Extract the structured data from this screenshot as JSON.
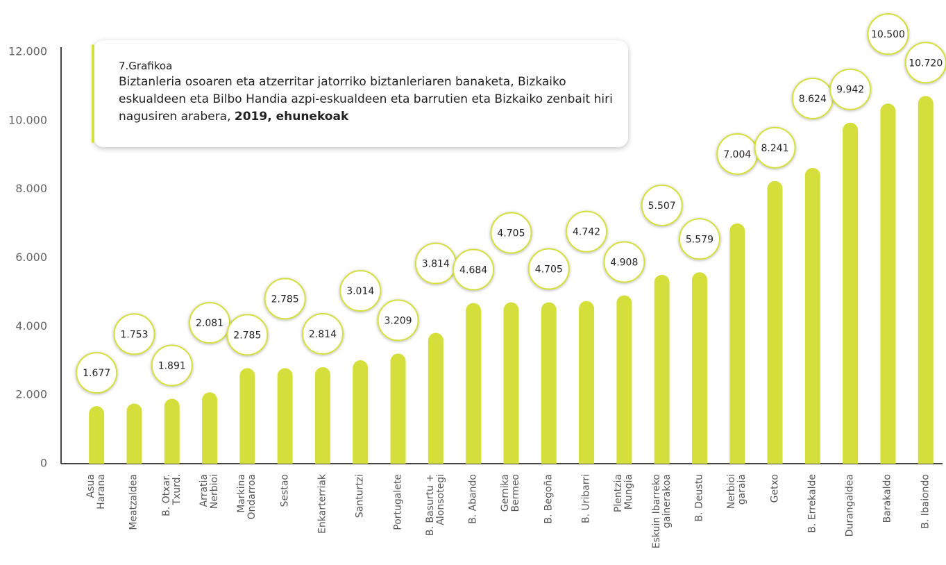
{
  "chart_data": {
    "type": "bar",
    "caption": "7.Grafikoa",
    "title": "Biztanleria osoaren eta atzerritar jatorriko biztanleriaren banaketa, Bizkaiko eskualdeen eta Bilbo Handia azpi-eskualdeen eta barrutien eta Bizkaiko zenbait hiri nagusiren arabera,",
    "title_bold": "2019, ehunekoak",
    "categories": [
      "Asua\nHarana",
      "Meatzaldea",
      "B. Otxar.\nTxurd.",
      "Arratia\nNerbioi",
      "Markina\nOndarroa",
      "Sestao",
      "Enkarterriak",
      "Santurtzi",
      "Portugalete",
      "B. Basurtu +\nAlonsotegi",
      "B. Abando",
      "Gernika\nBermeo",
      "B. Begoña",
      "B. Uribarri",
      "Plentzia\nMungia",
      "Eskuin Ibarreko\ngainerakoa",
      "B. Deustu",
      "Nerbioi\ngaraia",
      "Getxo",
      "B. Errekalde",
      "Durangaldea",
      "Barakaldo",
      "B. Ibaiondo"
    ],
    "values": [
      1677,
      1753,
      1891,
      2081,
      2785,
      2785,
      2814,
      3014,
      3209,
      3814,
      4684,
      4705,
      4705,
      4742,
      4908,
      5507,
      5579,
      7004,
      8241,
      8624,
      9942,
      10500,
      10720
    ],
    "value_labels": [
      "1.677",
      "1.753",
      "1.891",
      "2.081",
      "2.785",
      "2.785",
      "2.814",
      "3.014",
      "3.209",
      "3.814",
      "4.684",
      "4.705",
      "4.705",
      "4.742",
      "4.908",
      "5.507",
      "5.579",
      "7.004",
      "8.241",
      "8.624",
      "9.942",
      "10.500",
      "10.720"
    ],
    "color": "#d5df3c",
    "ylim": [
      0,
      12000
    ],
    "yticks": [
      0,
      {
        "value": 2000,
        "label": "2.000"
      },
      {
        "value": 4000,
        "label": "4.000"
      },
      {
        "value": 6000,
        "label": "6.000"
      },
      {
        "value": 8000,
        "label": "8.000"
      },
      {
        "value": 10000,
        "label": "10.000"
      },
      {
        "value": 12000,
        "label": "12.000"
      }
    ]
  }
}
